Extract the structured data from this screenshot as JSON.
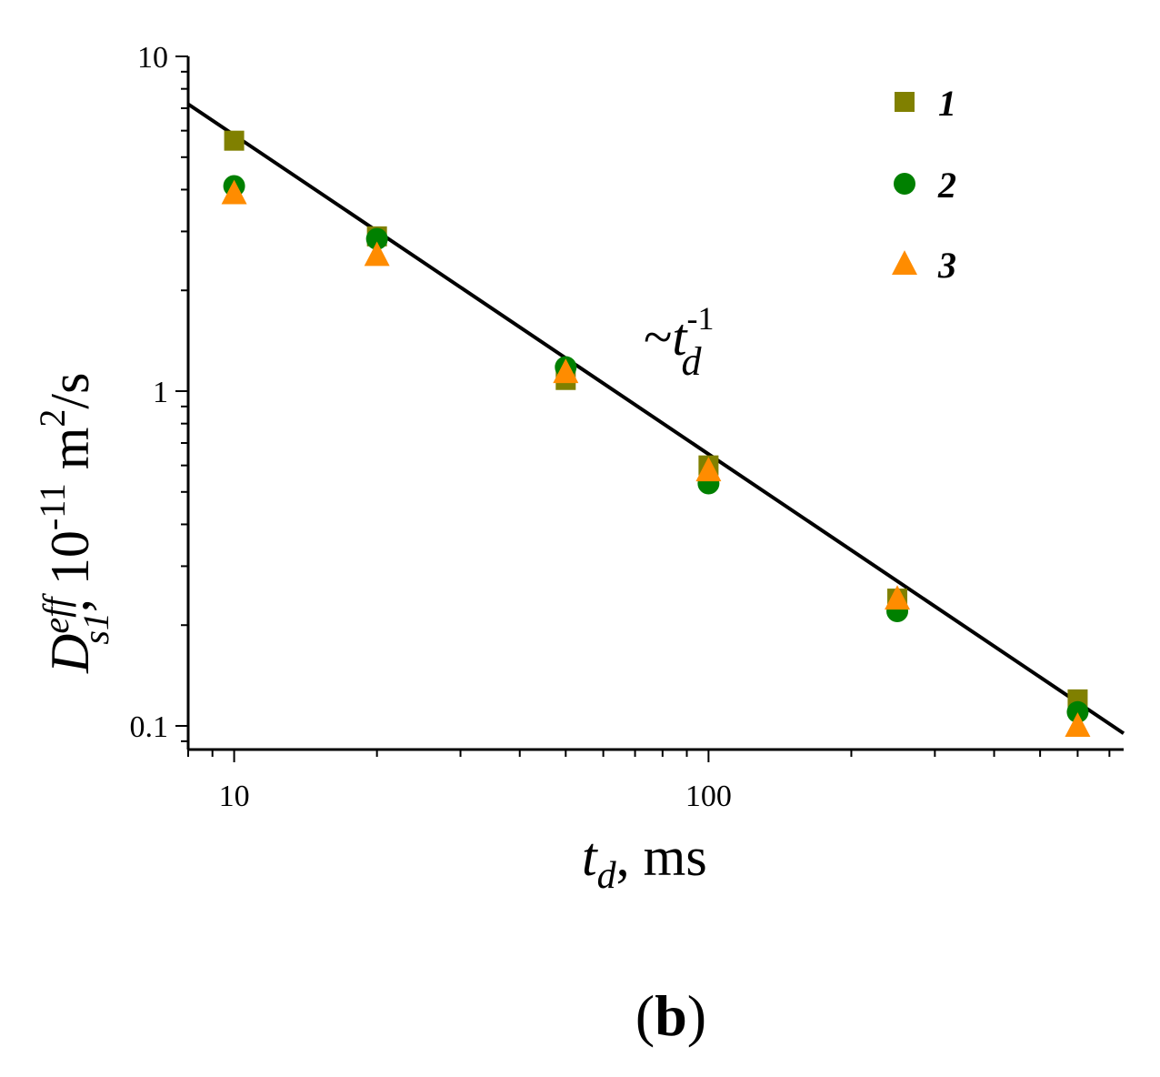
{
  "panel_label": {
    "open": "(",
    "letter": "b",
    "close": ")"
  },
  "colors": {
    "series1": "#808000",
    "series2": "#008000",
    "series3": "#ff8c00",
    "axis": "#000000",
    "fit": "#000000"
  },
  "chart_data": {
    "type": "scatter",
    "title": "",
    "xscale": "log",
    "yscale": "log",
    "xlim": [
      8,
      750
    ],
    "ylim": [
      0.085,
      10
    ],
    "xticks": [
      10,
      100
    ],
    "xtick_labels": [
      "10",
      "100"
    ],
    "yticks": [
      0.1,
      1,
      10
    ],
    "ytick_labels": [
      "0.1",
      "1",
      "10"
    ],
    "xlabel": {
      "main": "t",
      "sub": "d",
      "rest": ", ms"
    },
    "ylabel": {
      "main": "D",
      "sup": "eff",
      "sub": "s1",
      "rest": ", 10",
      "exp": "-11",
      "unit": " m",
      "unit_sup": "2",
      "unit_rest": "/s"
    },
    "legend_position": "top-right",
    "series": [
      {
        "name": "1",
        "marker": "square",
        "x": [
          10,
          20,
          50,
          100,
          250,
          600
        ],
        "y": [
          5.6,
          2.9,
          1.08,
          0.6,
          0.24,
          0.12
        ]
      },
      {
        "name": "2",
        "marker": "circle",
        "x": [
          10,
          20,
          50,
          100,
          250,
          600
        ],
        "y": [
          4.1,
          2.85,
          1.18,
          0.53,
          0.22,
          0.11
        ]
      },
      {
        "name": "3",
        "marker": "triangle",
        "x": [
          10,
          20,
          50,
          100,
          250,
          600
        ],
        "y": [
          3.9,
          2.55,
          1.14,
          0.58,
          0.24,
          0.1
        ]
      }
    ],
    "fit_line": {
      "label": "~t_d^-1",
      "x": [
        8,
        750
      ],
      "y": [
        7.2,
        0.095
      ]
    },
    "annotation": {
      "tilde": "~",
      "main": "t",
      "sub": "d",
      "sup": "-1"
    }
  }
}
